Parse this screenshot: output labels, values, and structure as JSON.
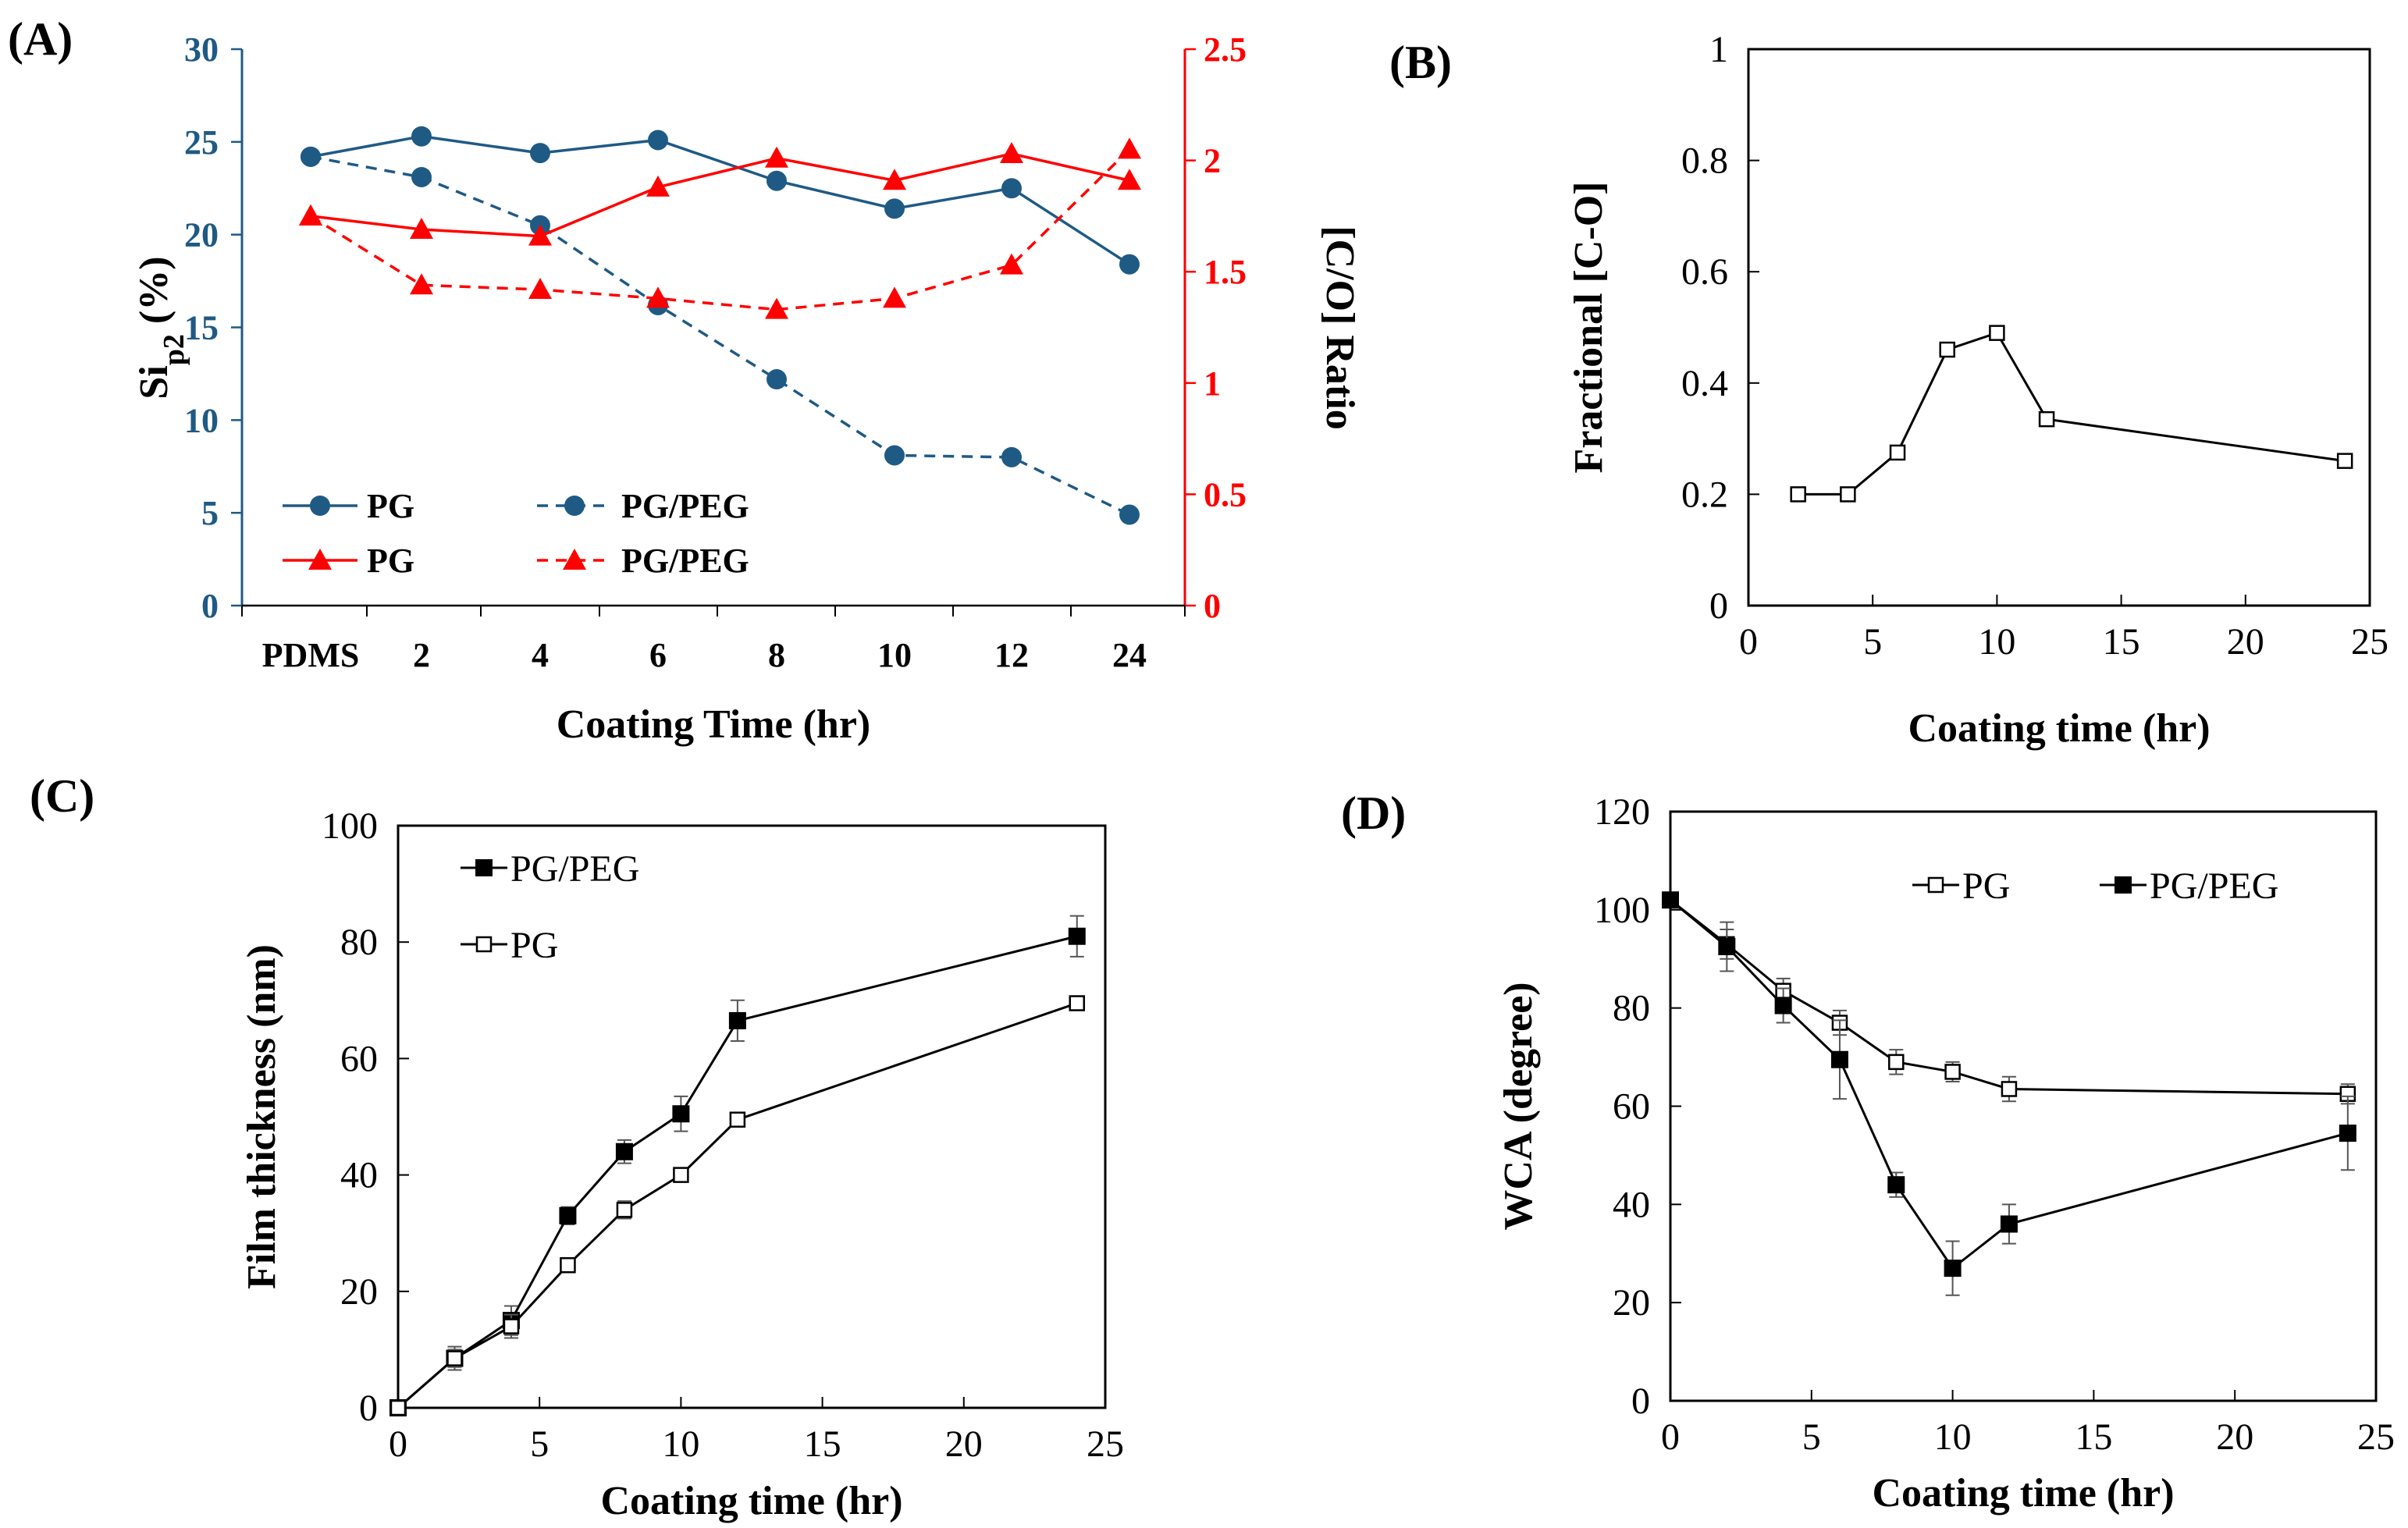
{
  "colors": {
    "blue": "#1f5a85",
    "red": "#ff0000",
    "black": "#000000"
  },
  "chart_data": [
    {
      "id": "A",
      "panel_label": "(A)",
      "type": "line",
      "categories": [
        "PDMS",
        "2",
        "4",
        "6",
        "8",
        "10",
        "12",
        "24"
      ],
      "xlabel": "Coating Time (hr)",
      "ylabel_main": "Si",
      "ylabel_sub": "p2",
      "ylabel_suffix": " (%)",
      "y2label": "[C/O] Ratio",
      "ylim": [
        0,
        30
      ],
      "yticks": [
        "0",
        "5",
        "10",
        "15",
        "20",
        "25",
        "30"
      ],
      "y2lim": [
        0,
        2.5
      ],
      "y2ticks": [
        "0",
        "0.5",
        "1",
        "1.5",
        "2",
        "2.5"
      ],
      "series": [
        {
          "name": "PG",
          "axis": "left",
          "marker": "circle",
          "dash": false,
          "color": "#1f5a85",
          "values": [
            24.2,
            25.3,
            24.4,
            25.1,
            22.9,
            21.4,
            22.5,
            18.4
          ]
        },
        {
          "name": "PG/PEG",
          "axis": "left",
          "marker": "circle",
          "dash": true,
          "color": "#1f5a85",
          "values": [
            24.2,
            23.1,
            20.5,
            16.2,
            12.2,
            8.1,
            8.0,
            4.9
          ]
        },
        {
          "name": "PG",
          "axis": "right",
          "marker": "triangle",
          "dash": false,
          "color": "#ff0000",
          "values": [
            1.75,
            1.69,
            1.66,
            1.88,
            2.01,
            1.91,
            2.03,
            1.91
          ]
        },
        {
          "name": "PG/PEG",
          "axis": "right",
          "marker": "triangle",
          "dash": true,
          "color": "#ff0000",
          "values": [
            1.75,
            1.44,
            1.42,
            1.38,
            1.33,
            1.38,
            1.53,
            2.05
          ]
        }
      ]
    },
    {
      "id": "B",
      "panel_label": "(B)",
      "type": "line",
      "xlabel": "Coating time (hr)",
      "ylabel": "Fractional [C-O]",
      "xlim": [
        0,
        25
      ],
      "xticks": [
        "0",
        "5",
        "10",
        "15",
        "20",
        "25"
      ],
      "ylim": [
        0,
        1
      ],
      "yticks": [
        "0",
        "0.2",
        "0.4",
        "0.6",
        "0.8",
        "1"
      ],
      "series": [
        {
          "name": "Fractional [C-O]",
          "marker": "square-open",
          "x": [
            2,
            4,
            6,
            8,
            10,
            12,
            24
          ],
          "y": [
            0.2,
            0.2,
            0.275,
            0.46,
            0.49,
            0.335,
            0.26
          ]
        }
      ]
    },
    {
      "id": "C",
      "panel_label": "(C)",
      "type": "line",
      "xlabel": "Coating time (hr)",
      "ylabel": "Film thickness (nm)",
      "xlim": [
        0,
        25
      ],
      "xticks": [
        "0",
        "5",
        "10",
        "15",
        "20",
        "25"
      ],
      "ylim": [
        0,
        100
      ],
      "yticks": [
        "0",
        "20",
        "40",
        "60",
        "80",
        "100"
      ],
      "series": [
        {
          "name": "PG/PEG",
          "marker": "square-filled",
          "x": [
            0,
            2,
            4,
            6,
            8,
            10,
            12,
            24
          ],
          "y": [
            0,
            8.5,
            15,
            33,
            44,
            50.5,
            66.5,
            81
          ],
          "err": [
            0,
            2,
            2.5,
            1.5,
            2,
            3,
            3.5,
            3.5
          ]
        },
        {
          "name": "PG",
          "marker": "square-open",
          "x": [
            0,
            2,
            4,
            6,
            8,
            10,
            12,
            24
          ],
          "y": [
            0,
            8.5,
            14,
            24.5,
            34,
            40,
            49.5,
            69.5
          ],
          "err": [
            0,
            1.5,
            2,
            1,
            1.5,
            1,
            1,
            1
          ]
        }
      ]
    },
    {
      "id": "D",
      "panel_label": "(D)",
      "type": "line",
      "xlabel": "Coating time (hr)",
      "ylabel": "WCA (degree)",
      "xlim": [
        0,
        25
      ],
      "xticks": [
        "0",
        "5",
        "10",
        "15",
        "20",
        "25"
      ],
      "ylim": [
        0,
        120
      ],
      "yticks": [
        "0",
        "20",
        "40",
        "60",
        "80",
        "100",
        "120"
      ],
      "series": [
        {
          "name": "PG",
          "marker": "square-open",
          "x": [
            0,
            2,
            4,
            6,
            8,
            10,
            12,
            24
          ],
          "y": [
            102,
            93,
            83.5,
            77,
            69,
            67,
            63.5,
            62.5
          ],
          "err": [
            0,
            3,
            2.5,
            2.5,
            2.5,
            2,
            2.5,
            2
          ]
        },
        {
          "name": "PG/PEG",
          "marker": "square-filled",
          "x": [
            0,
            2,
            4,
            6,
            8,
            10,
            12,
            24
          ],
          "y": [
            102,
            92.5,
            80.5,
            69.5,
            44,
            27,
            36,
            54.5
          ],
          "err": [
            0,
            5,
            3.5,
            8,
            2.5,
            5.5,
            4,
            7.5
          ]
        }
      ]
    }
  ]
}
